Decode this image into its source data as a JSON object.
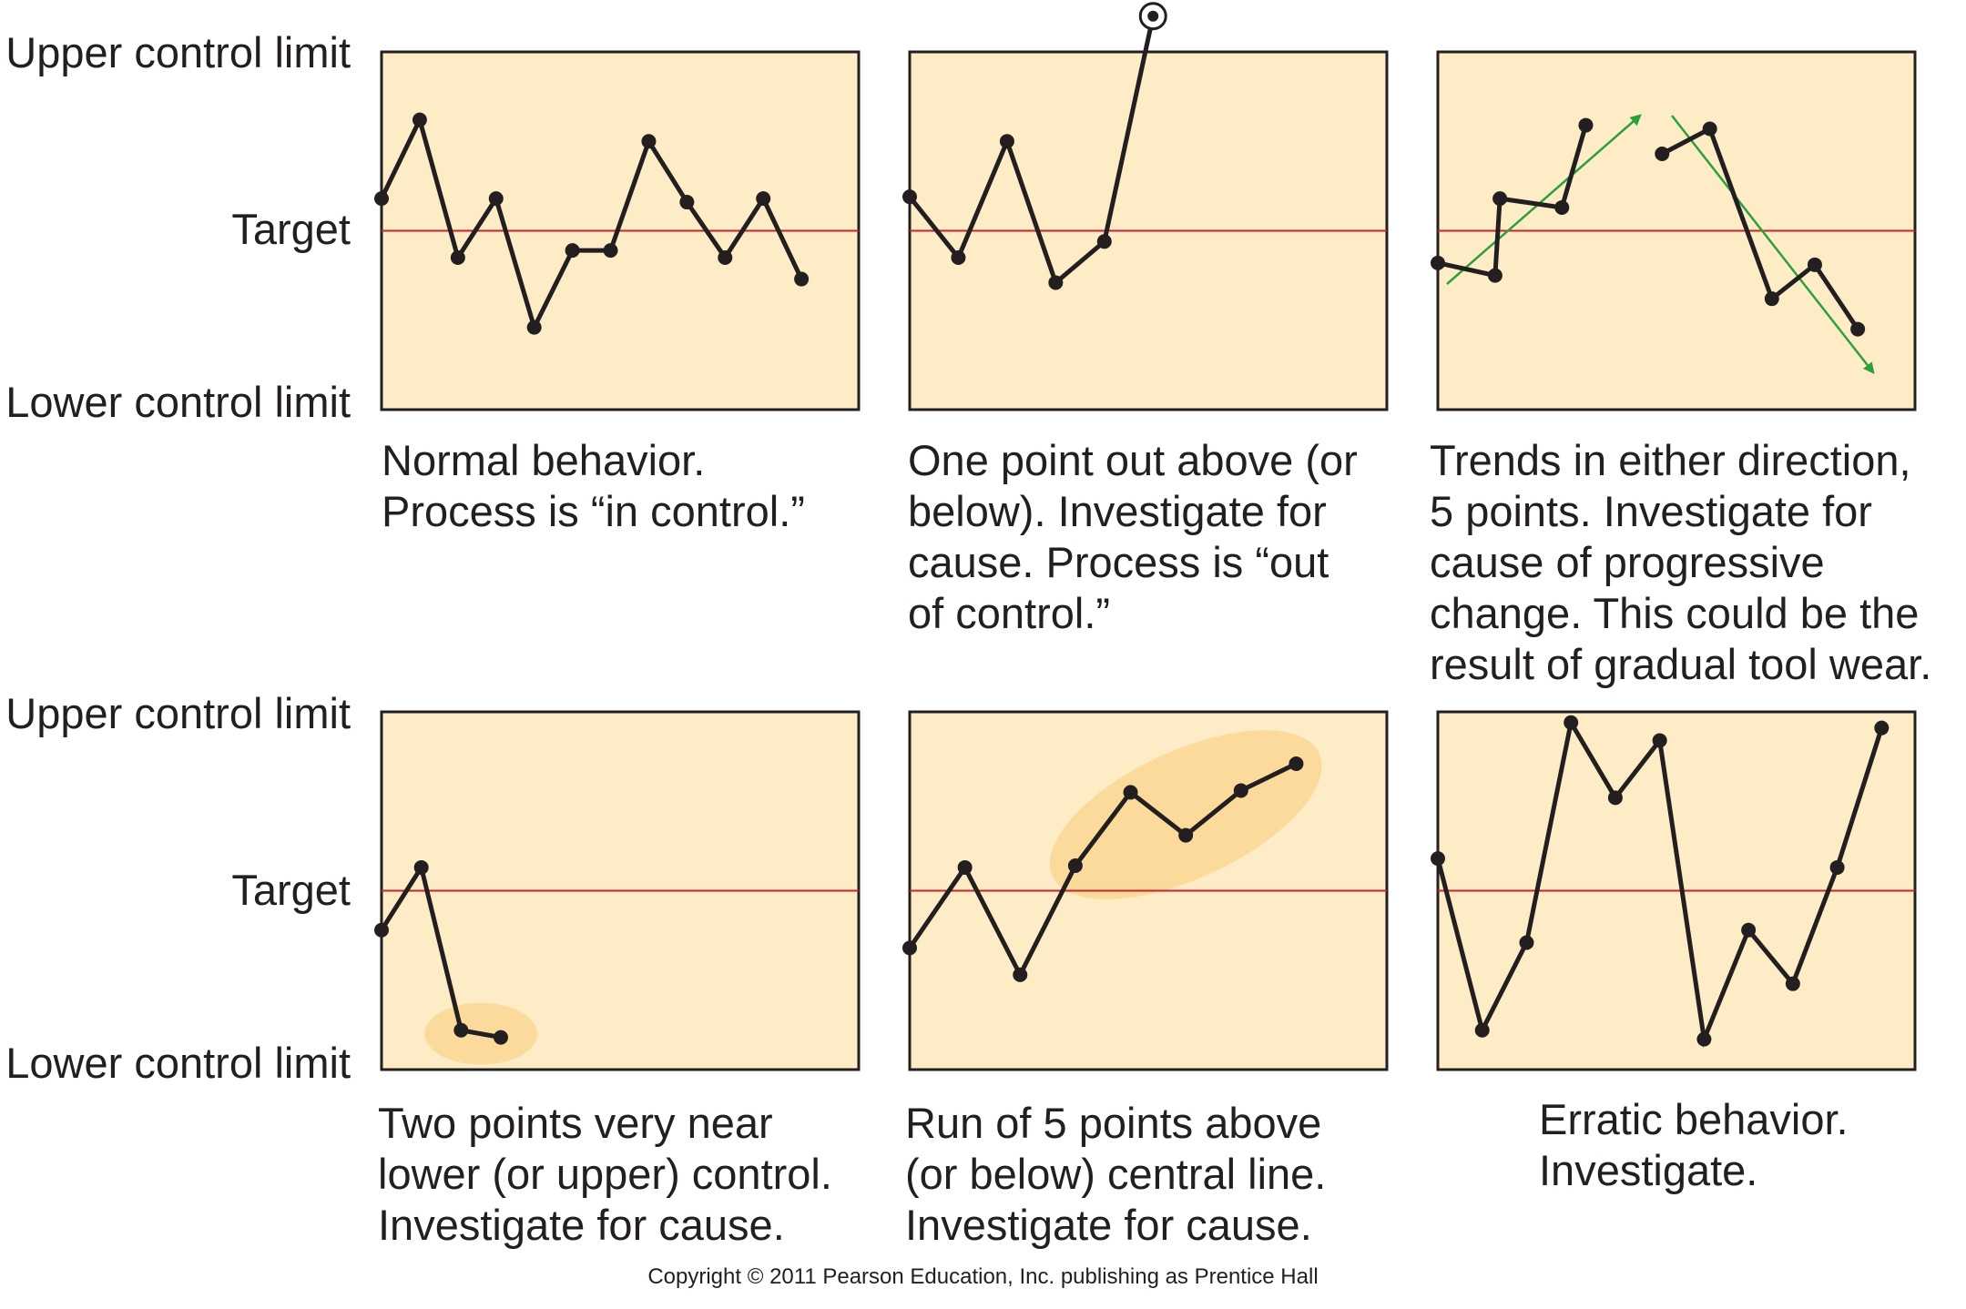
{
  "axis_labels": {
    "upper": "Upper control limit",
    "target": "Target",
    "lower": "Lower control limit"
  },
  "colors": {
    "panel_fill": "#fdecc6",
    "panel_border": "#231f20",
    "target_line": "#c8252b",
    "series_line": "#231f20",
    "trend_arrow": "#2ea03b",
    "highlight": "#fbd48c"
  },
  "chart_data": [
    {
      "type": "line",
      "panel": "normal-behavior",
      "ylim": [
        -1,
        1
      ],
      "target": 0,
      "values": [
        0.18,
        0.62,
        -0.15,
        0.18,
        -0.54,
        -0.11,
        -0.11,
        0.5,
        0.16,
        -0.15,
        0.18,
        -0.27
      ],
      "caption": [
        "Normal behavior.",
        "Process is “in control.”"
      ]
    },
    {
      "type": "line",
      "panel": "one-point-out",
      "ylim": [
        -1,
        1
      ],
      "target": 0,
      "values": [
        0.19,
        -0.15,
        0.5,
        -0.29,
        -0.06,
        1.2
      ],
      "outlier_index": 5,
      "caption": [
        "One point out above (or",
        "below). Investigate for",
        "cause. Process is “out",
        "of control.”"
      ]
    },
    {
      "type": "line",
      "panel": "trends",
      "ylim": [
        -1,
        1
      ],
      "target": 0,
      "segments": [
        [
          -0.18,
          -0.25,
          0.18,
          0.13,
          0.59
        ],
        [
          0.43,
          0.57,
          -0.38,
          -0.19,
          -0.55
        ]
      ],
      "trend_arrows": [
        "up",
        "down"
      ],
      "caption": [
        "Trends in either direction,",
        "5 points. Investigate for",
        "cause of progressive",
        "change. This could be the",
        "result of gradual tool wear."
      ]
    },
    {
      "type": "line",
      "panel": "two-points-near-limit",
      "ylim": [
        -1,
        1
      ],
      "target": 0,
      "values": [
        -0.22,
        0.13,
        -0.78,
        -0.82
      ],
      "highlight_indices": [
        2,
        3
      ],
      "caption": [
        "Two points very near",
        "lower (or upper) control.",
        "Investigate for cause."
      ]
    },
    {
      "type": "line",
      "panel": "run-of-five",
      "ylim": [
        -1,
        1
      ],
      "target": 0,
      "values": [
        -0.32,
        0.13,
        -0.47,
        0.14,
        0.55,
        0.31,
        0.56,
        0.71
      ],
      "highlight_indices": [
        3,
        4,
        5,
        6,
        7
      ],
      "caption": [
        "Run of 5 points above",
        "(or below) central line.",
        "Investigate for cause."
      ]
    },
    {
      "type": "line",
      "panel": "erratic-behavior",
      "ylim": [
        -1,
        1
      ],
      "target": 0,
      "values": [
        0.18,
        -0.78,
        -0.29,
        0.94,
        0.52,
        0.84,
        -0.83,
        -0.22,
        -0.52,
        0.13,
        0.91
      ],
      "caption": [
        "Erratic behavior.",
        "Investigate."
      ]
    }
  ],
  "copyright": "Copyright © 2011 Pearson Education, Inc. publishing as Prentice Hall"
}
